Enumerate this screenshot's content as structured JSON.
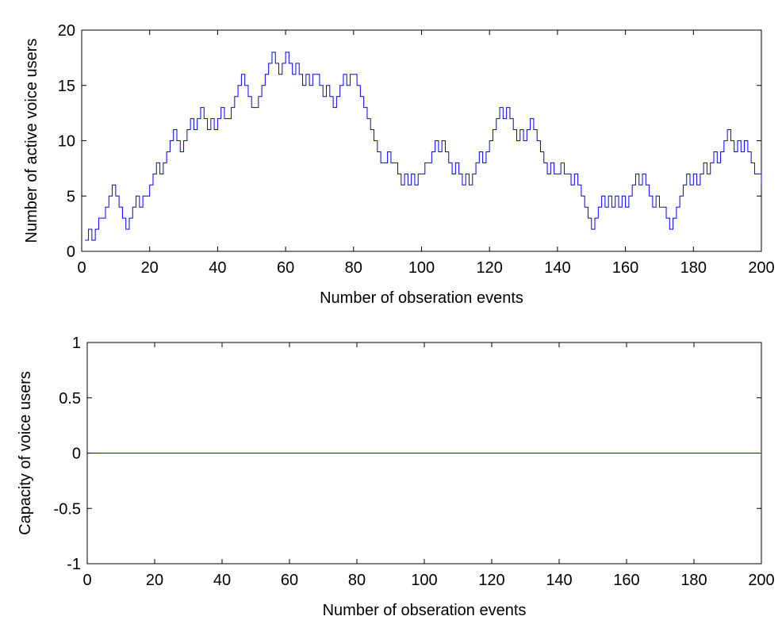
{
  "chart_data": [
    {
      "type": "line",
      "step": true,
      "title": "",
      "xlabel": "Number of obseration events",
      "ylabel": "Number of active voice users",
      "xlim": [
        0,
        200
      ],
      "ylim": [
        0,
        20
      ],
      "xticks": [
        0,
        20,
        40,
        60,
        80,
        100,
        120,
        140,
        160,
        180,
        200
      ],
      "yticks": [
        0,
        5,
        10,
        15,
        20
      ],
      "grid": false,
      "color": "#0000ff",
      "series": [
        {
          "x": [
            1,
            2,
            3,
            4,
            5,
            6,
            7,
            8,
            9,
            10,
            11,
            12,
            13,
            14,
            15,
            16,
            17,
            18,
            19,
            20,
            21,
            22,
            23,
            24,
            25,
            26,
            27,
            28,
            29,
            30,
            31,
            32,
            33,
            34,
            35,
            36,
            37,
            38,
            39,
            40,
            41,
            42,
            43,
            44,
            45,
            46,
            47,
            48,
            49,
            50,
            51,
            52,
            53,
            54,
            55,
            56,
            57,
            58,
            59,
            60,
            61,
            62,
            63,
            64,
            65,
            66,
            67,
            68,
            69,
            70,
            71,
            72,
            73,
            74,
            75,
            76,
            77,
            78,
            79,
            80,
            81,
            82,
            83,
            84,
            85,
            86,
            87,
            88,
            89,
            90,
            91,
            92,
            93,
            94,
            95,
            96,
            97,
            98,
            99,
            100,
            101,
            102,
            103,
            104,
            105,
            106,
            107,
            108,
            109,
            110,
            111,
            112,
            113,
            114,
            115,
            116,
            117,
            118,
            119,
            120,
            121,
            122,
            123,
            124,
            125,
            126,
            127,
            128,
            129,
            130,
            131,
            132,
            133,
            134,
            135,
            136,
            137,
            138,
            139,
            140,
            141,
            142,
            143,
            144,
            145,
            146,
            147,
            148,
            149,
            150,
            151,
            152,
            153,
            154,
            155,
            156,
            157,
            158,
            159,
            160,
            161,
            162,
            163,
            164,
            165,
            166,
            167,
            168,
            169,
            170,
            171,
            172,
            173,
            174,
            175,
            176,
            177,
            178,
            179,
            180,
            181,
            182,
            183,
            184,
            185,
            186,
            187,
            188,
            189,
            190,
            191,
            192,
            193,
            194,
            195,
            196,
            197,
            198,
            199,
            200
          ],
          "y": [
            1,
            2,
            1,
            2,
            3,
            3,
            4,
            5,
            6,
            5,
            4,
            3,
            2,
            3,
            4,
            5,
            4,
            5,
            5,
            6,
            7,
            8,
            7,
            8,
            9,
            10,
            11,
            10,
            9,
            10,
            11,
            12,
            11,
            12,
            13,
            12,
            11,
            12,
            11,
            12,
            13,
            12,
            12,
            13,
            14,
            15,
            16,
            15,
            14,
            13,
            13,
            14,
            15,
            16,
            17,
            18,
            17,
            16,
            17,
            18,
            17,
            16,
            17,
            16,
            15,
            16,
            15,
            16,
            16,
            15,
            14,
            15,
            14,
            13,
            14,
            15,
            16,
            15,
            16,
            16,
            15,
            14,
            13,
            12,
            11,
            10,
            9,
            8,
            8,
            9,
            8,
            8,
            7,
            6,
            7,
            6,
            7,
            6,
            7,
            7,
            8,
            8,
            9,
            10,
            9,
            10,
            9,
            8,
            7,
            8,
            7,
            6,
            7,
            6,
            7,
            8,
            9,
            8,
            9,
            10,
            11,
            12,
            13,
            12,
            13,
            12,
            11,
            10,
            11,
            10,
            11,
            12,
            11,
            10,
            9,
            8,
            7,
            8,
            7,
            7,
            8,
            7,
            7,
            6,
            7,
            6,
            5,
            4,
            3,
            2,
            3,
            4,
            5,
            4,
            5,
            4,
            5,
            4,
            5,
            4,
            5,
            6,
            7,
            6,
            7,
            6,
            5,
            4,
            5,
            4,
            4,
            3,
            2,
            3,
            4,
            5,
            6,
            7,
            6,
            7,
            6,
            7,
            8,
            7,
            8,
            9,
            8,
            9,
            10,
            11,
            10,
            9,
            10,
            9,
            10,
            9,
            8,
            7,
            7,
            6
          ]
        }
      ]
    },
    {
      "type": "line",
      "step": false,
      "title": "",
      "xlabel": "Number of obseration events",
      "ylabel": "Capacity of voice users",
      "xlim": [
        0,
        200
      ],
      "ylim": [
        -1,
        1
      ],
      "xticks": [
        0,
        20,
        40,
        60,
        80,
        100,
        120,
        140,
        160,
        180,
        200
      ],
      "yticks": [
        -1,
        -0.5,
        0,
        0.5,
        1
      ],
      "grid": false,
      "color": "#0000ff",
      "series": [
        {
          "x": [
            1,
            200
          ],
          "y": [
            0,
            0
          ]
        }
      ]
    }
  ]
}
